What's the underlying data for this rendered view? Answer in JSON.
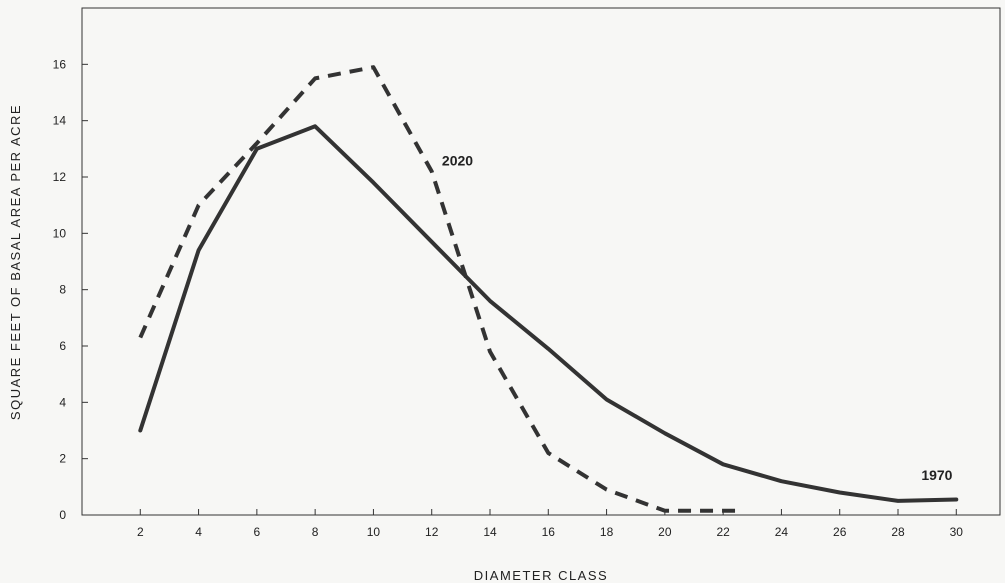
{
  "chart_data": {
    "type": "line",
    "xlabel": "DIAMETER CLASS",
    "ylabel": "SQUARE FEET OF BASAL AREA PER ACRE",
    "xlim": [
      0,
      31.5
    ],
    "ylim": [
      0,
      18
    ],
    "x_ticks": [
      2,
      4,
      6,
      8,
      10,
      12,
      14,
      16,
      18,
      20,
      22,
      24,
      26,
      28,
      30
    ],
    "y_ticks": [
      0,
      2,
      4,
      6,
      8,
      10,
      12,
      14,
      16
    ],
    "grid": false,
    "series": [
      {
        "name": "1970",
        "style": "solid",
        "color": "#333333",
        "x": [
          2,
          4,
          6,
          8,
          10,
          12,
          14,
          16,
          18,
          20,
          22,
          24,
          26,
          28,
          30
        ],
        "y": [
          3.0,
          9.4,
          13.0,
          13.8,
          11.8,
          9.7,
          7.6,
          5.9,
          4.1,
          2.9,
          1.8,
          1.2,
          0.8,
          0.5,
          0.55
        ]
      },
      {
        "name": "2020",
        "style": "dashed",
        "color": "#333333",
        "x": [
          2,
          4,
          6,
          8,
          10,
          12,
          14,
          16,
          18,
          20,
          22,
          22.6
        ],
        "y": [
          6.3,
          11.0,
          13.2,
          15.5,
          15.9,
          12.2,
          5.8,
          2.2,
          0.9,
          0.15,
          0.15,
          0.15
        ]
      }
    ]
  }
}
